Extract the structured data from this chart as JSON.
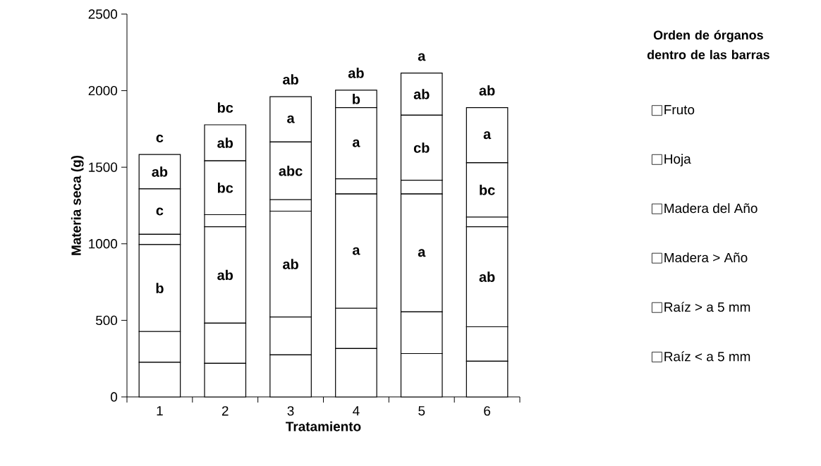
{
  "chart_data": {
    "type": "bar",
    "stacked": true,
    "xlabel": "Tratamiento",
    "ylabel": "Materia seca (g)",
    "legend_title": "Orden de órganos dentro de las barras",
    "legend": "right",
    "categories": [
      "1",
      "2",
      "3",
      "4",
      "5",
      "6"
    ],
    "ylim": [
      0,
      2500
    ],
    "yticks": [
      0,
      500,
      1000,
      1500,
      2000,
      2500
    ],
    "series": [
      {
        "name": "Raíz < a 5 mm",
        "color": "#ffffff",
        "values": [
          226,
          219,
          274,
          316,
          283,
          233
        ]
      },
      {
        "name": "Raíz > a 5 mm",
        "color": "#ffffff",
        "values": [
          201,
          263,
          248,
          263,
          272,
          225
        ]
      },
      {
        "name": "Madera > Año",
        "color": "#ffffff",
        "values": [
          568,
          629,
          691,
          746,
          770,
          653
        ],
        "value_labels": [
          "b",
          "ab",
          "ab",
          "a",
          "a",
          "ab"
        ]
      },
      {
        "name": "Madera del Año",
        "color": "#ffffff",
        "values": [
          67,
          79,
          75,
          99,
          90,
          63
        ]
      },
      {
        "name": "Hoja",
        "color": "#ffffff",
        "values": [
          297,
          352,
          377,
          465,
          425,
          355
        ],
        "value_labels": [
          "c",
          "bc",
          "abc",
          "a",
          "cb",
          "bc"
        ]
      },
      {
        "name": "Fruto",
        "color": "#ffffff",
        "values": [
          224,
          235,
          296,
          114,
          275,
          360
        ],
        "value_labels": [
          "ab",
          "ab",
          "a",
          "b",
          "ab",
          "a"
        ]
      }
    ],
    "totals": [
      "c",
      "bc",
      "ab",
      "ab",
      "a",
      "ab"
    ]
  }
}
